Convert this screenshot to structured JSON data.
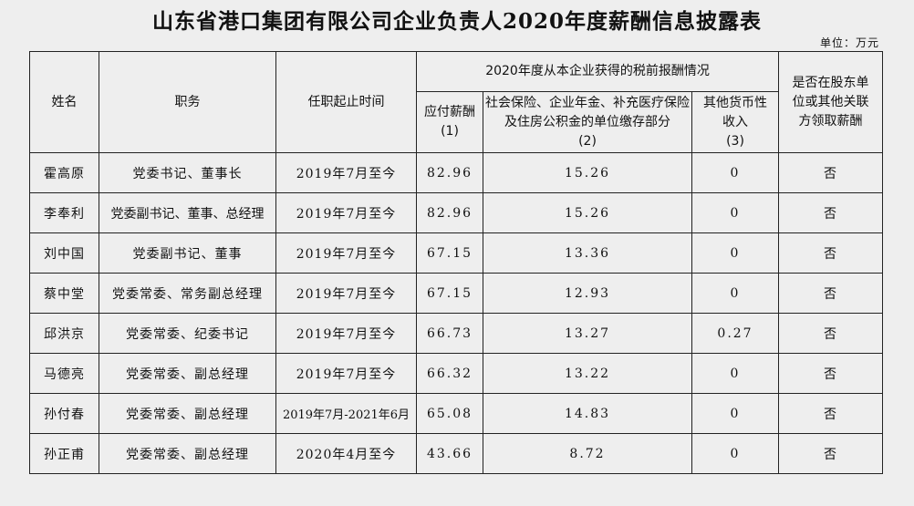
{
  "title": "山东省港口集团有限公司企业负责人2020年度薪酬信息披露表",
  "unit": "单位：万元",
  "headers": {
    "name": "姓名",
    "position": "职务",
    "term": "任职起止时间",
    "group": "2020年度从本企业获得的税前报酬情况",
    "payable": "应付薪酬",
    "payable_no": "(1)",
    "social": "社会保险、企业年金、补充医疗保险及住房公积金的单位缴存部分",
    "social_no": "(2)",
    "other": "其他货币性收入",
    "other_no": "(3)",
    "related": "是否在股东单位或其他关联方领取薪酬"
  },
  "rows": [
    {
      "name": "霍高原",
      "position": "党委书记、董事长",
      "term": "2019年7月至今",
      "payable": "82.96",
      "social": "15.26",
      "other": "0",
      "related": "否"
    },
    {
      "name": "李奉利",
      "position": "党委副书记、董事、总经理",
      "term": "2019年7月至今",
      "payable": "82.96",
      "social": "15.26",
      "other": "0",
      "related": "否"
    },
    {
      "name": "刘中国",
      "position": "党委副书记、董事",
      "term": "2019年7月至今",
      "payable": "67.15",
      "social": "13.36",
      "other": "0",
      "related": "否"
    },
    {
      "name": "蔡中堂",
      "position": "党委常委、常务副总经理",
      "term": "2019年7月至今",
      "payable": "67.15",
      "social": "12.93",
      "other": "0",
      "related": "否"
    },
    {
      "name": "邱洪京",
      "position": "党委常委、纪委书记",
      "term": "2019年7月至今",
      "payable": "66.73",
      "social": "13.27",
      "other": "0.27",
      "related": "否"
    },
    {
      "name": "马德亮",
      "position": "党委常委、副总经理",
      "term": "2019年7月至今",
      "payable": "66.32",
      "social": "13.22",
      "other": "0",
      "related": "否"
    },
    {
      "name": "孙付春",
      "position": "党委常委、副总经理",
      "term": "2019年7月-2021年6月",
      "payable": "65.08",
      "social": "14.83",
      "other": "0",
      "related": "否"
    },
    {
      "name": "孙正甫",
      "position": "党委常委、副总经理",
      "term": "2020年4月至今",
      "payable": "43.66",
      "social": "8.72",
      "other": "0",
      "related": "否"
    }
  ]
}
